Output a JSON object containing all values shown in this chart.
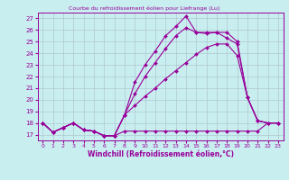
{
  "title": "Courbe du refroidissement éolien pour Liefrange (Lu)",
  "xlabel": "Windchill (Refroidissement éolien,°C)",
  "bg_color": "#c8eef0",
  "grid_color": "#b0c8d0",
  "line_color": "#990099",
  "x_ticks": [
    0,
    1,
    2,
    3,
    4,
    5,
    6,
    7,
    8,
    9,
    10,
    11,
    12,
    13,
    14,
    15,
    16,
    17,
    18,
    19,
    20,
    21,
    22,
    23
  ],
  "y_ticks": [
    17,
    18,
    19,
    20,
    21,
    22,
    23,
    24,
    25,
    26,
    27
  ],
  "ylim": [
    16.5,
    27.5
  ],
  "xlim": [
    -0.5,
    23.5
  ],
  "series1_x": [
    0,
    1,
    2,
    3,
    4,
    5,
    6,
    7,
    8,
    9,
    10,
    11,
    12,
    13,
    14,
    15,
    16,
    17,
    18,
    19,
    20,
    21,
    22,
    23
  ],
  "series1_y": [
    18.0,
    17.2,
    17.6,
    18.0,
    17.4,
    17.3,
    16.9,
    16.9,
    17.3,
    17.3,
    17.3,
    17.3,
    17.3,
    17.3,
    17.3,
    17.3,
    17.3,
    17.3,
    17.3,
    17.3,
    17.3,
    17.3,
    18.0,
    18.0
  ],
  "series2_x": [
    0,
    1,
    2,
    3,
    4,
    5,
    6,
    7,
    8,
    9,
    10,
    11,
    12,
    13,
    14,
    15,
    16,
    17,
    18,
    19,
    20,
    21,
    22,
    23
  ],
  "series2_y": [
    18.0,
    17.2,
    17.6,
    18.0,
    17.4,
    17.3,
    16.9,
    16.9,
    18.7,
    19.5,
    20.3,
    21.0,
    21.8,
    22.5,
    23.2,
    23.9,
    24.5,
    24.8,
    24.8,
    23.8,
    20.2,
    18.2,
    18.0,
    18.0
  ],
  "series3_x": [
    0,
    1,
    2,
    3,
    4,
    5,
    6,
    7,
    8,
    9,
    10,
    11,
    12,
    13,
    14,
    15,
    16,
    17,
    18,
    19,
    20,
    21,
    22,
    23
  ],
  "series3_y": [
    18.0,
    17.2,
    17.6,
    18.0,
    17.4,
    17.3,
    16.9,
    16.9,
    18.7,
    20.5,
    22.0,
    23.2,
    24.4,
    25.5,
    26.2,
    25.8,
    25.7,
    25.8,
    25.8,
    25.0,
    20.2,
    18.2,
    18.0,
    18.0
  ],
  "series4_x": [
    0,
    1,
    2,
    3,
    4,
    5,
    6,
    7,
    8,
    9,
    10,
    11,
    12,
    13,
    14,
    15,
    16,
    17,
    18,
    19,
    20,
    21,
    22,
    23
  ],
  "series4_y": [
    18.0,
    17.2,
    17.6,
    18.0,
    17.4,
    17.3,
    16.9,
    16.9,
    18.7,
    21.5,
    23.0,
    24.2,
    25.5,
    26.3,
    27.2,
    25.8,
    25.8,
    25.8,
    25.3,
    24.8,
    20.2,
    18.2,
    18.0,
    18.0
  ]
}
